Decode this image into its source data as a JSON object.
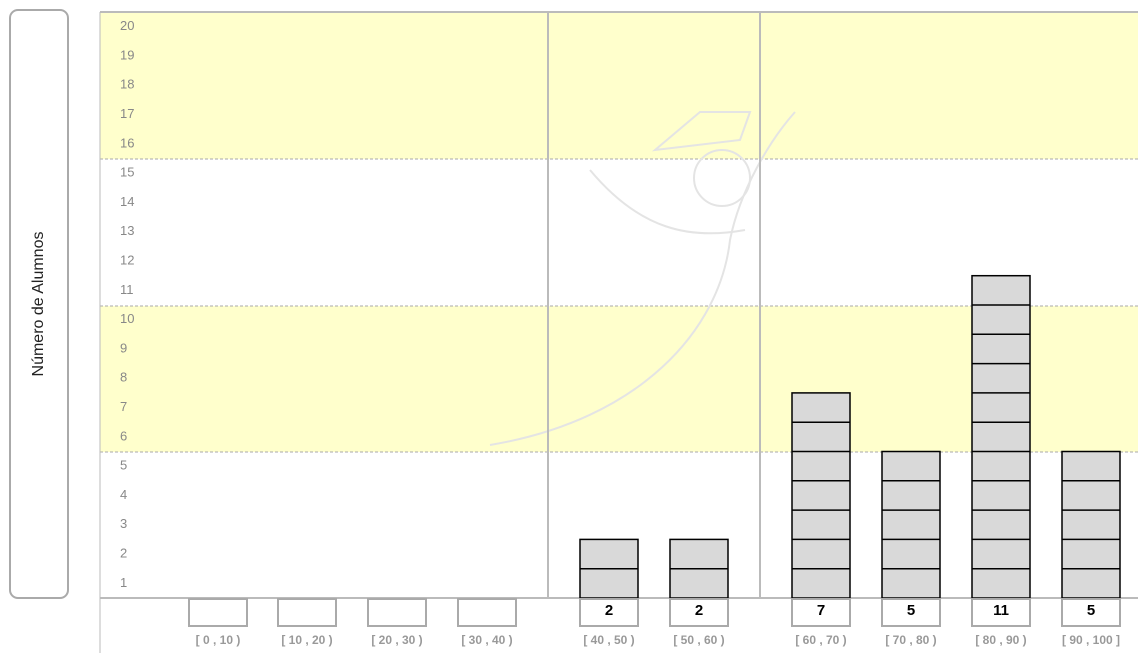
{
  "chart_data": {
    "type": "bar",
    "y_label": "Número de Alumnos",
    "categories": [
      "[ 0 , 10 )",
      "[ 10 , 20 )",
      "[ 20 , 30 )",
      "[ 30 , 40 )",
      "[ 40 , 50 )",
      "[ 50 , 60 )",
      "[ 60 , 70 )",
      "[ 70 , 80 )",
      "[ 80 , 90 )",
      "[ 90 , 100 ]"
    ],
    "values": [
      0,
      0,
      0,
      0,
      2,
      2,
      7,
      5,
      11,
      5
    ],
    "color": "#d9d9d9",
    "ylim": [
      0,
      20
    ],
    "yticks": [
      1,
      2,
      3,
      4,
      5,
      6,
      7,
      8,
      9,
      10,
      11,
      12,
      13,
      14,
      15,
      16,
      17,
      18,
      19,
      20
    ]
  }
}
